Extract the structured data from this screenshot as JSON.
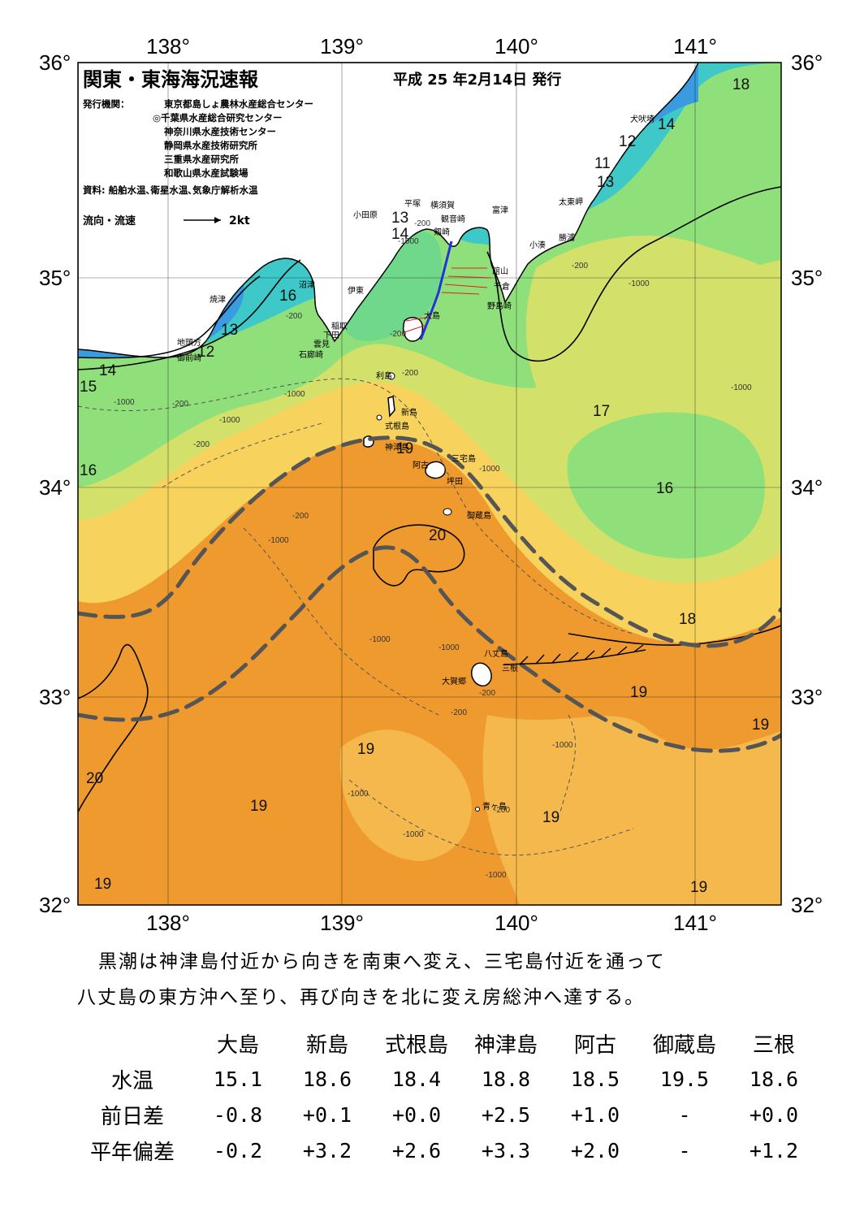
{
  "header": {
    "title": "関東・東海海況速報",
    "date": "平成 25 年2月14日 発行",
    "issuer_label": "発行機関：",
    "issuers": [
      "東京都島しょ農林水産総合センター",
      "◎千葉県水産総合研究センター",
      "神奈川県水産技術センター",
      "静岡県水産技術研究所",
      "三重県水産研究所",
      "和歌山県水産試験場"
    ],
    "source": "資料: 船舶水温､衛星水温､気象庁解析水温",
    "legend_label": "流向・流速",
    "legend_scale": "2kt"
  },
  "axes": {
    "lon_labels": [
      "138°",
      "139°",
      "140°",
      "141°"
    ],
    "lat_labels": [
      "36°",
      "35°",
      "34°",
      "33°",
      "32°"
    ]
  },
  "isotherm_labels": [
    "18",
    "14",
    "12",
    "11",
    "13",
    "13",
    "14",
    "16",
    "13",
    "12",
    "14",
    "15",
    "16",
    "17",
    "16",
    "20",
    "18",
    "19",
    "19",
    "19",
    "20",
    "19",
    "19",
    "19",
    "19",
    "19"
  ],
  "depth_labels": [
    "-200",
    "-200",
    "-1000",
    "-200",
    "-1000",
    "-200",
    "-200",
    "-1000",
    "-200",
    "-1000",
    "-200",
    "-1000",
    "-200",
    "-1000",
    "-1000",
    "-1000",
    "-200",
    "-1000",
    "-1000",
    "-1000",
    "-1000",
    "-200",
    "-1000",
    "-1000",
    "-200"
  ],
  "places": [
    "犬吠埼",
    "太東岬",
    "勝浦",
    "小湊",
    "富津",
    "横須賀",
    "観音崎",
    "平塚",
    "小田原",
    "剱崎",
    "館山",
    "千倉",
    "野島崎",
    "沼津",
    "伊東",
    "稲取",
    "下田",
    "雲見",
    "石廊崎",
    "焼津",
    "地頭方",
    "御前崎",
    "大島",
    "利島",
    "新島",
    "式根島",
    "神津島",
    "三宅島",
    "阿古",
    "坪田",
    "御蔵島",
    "八丈島",
    "三根",
    "大賀郷",
    "青ヶ島"
  ],
  "description": [
    "黒潮は神津島付近から向きを南東へ変え、三宅島付近を通って",
    "八丈島の東方沖へ至り、再び向きを北に変え房総沖へ達する。"
  ],
  "table": {
    "columns": [
      "大島",
      "新島",
      "式根島",
      "神津島",
      "阿古",
      "御蔵島",
      "三根"
    ],
    "rows": [
      {
        "label": "水温",
        "values": [
          "15.1",
          "18.6",
          "18.4",
          "18.8",
          "18.5",
          "19.5",
          "18.6"
        ]
      },
      {
        "label": "前日差",
        "values": [
          "-0.8",
          "+0.1",
          "+0.0",
          "+2.5",
          "+1.0",
          "-",
          "+0.0"
        ]
      },
      {
        "label": "平年偏差",
        "values": [
          "-0.2",
          "+3.2",
          "+2.6",
          "+3.3",
          "+2.0",
          "-",
          "+1.2"
        ]
      }
    ]
  },
  "colors": {
    "warm": "#ef9a2e",
    "warm_light": "#f5b84c",
    "mid": "#f7d35e",
    "cool": "#d3e06a",
    "green": "#8fe07a",
    "cyan": "#3ec8c8",
    "blue": "#3a9be0",
    "land": "#ffffff",
    "kuroshio": "#555555",
    "track": "#2233dd"
  }
}
